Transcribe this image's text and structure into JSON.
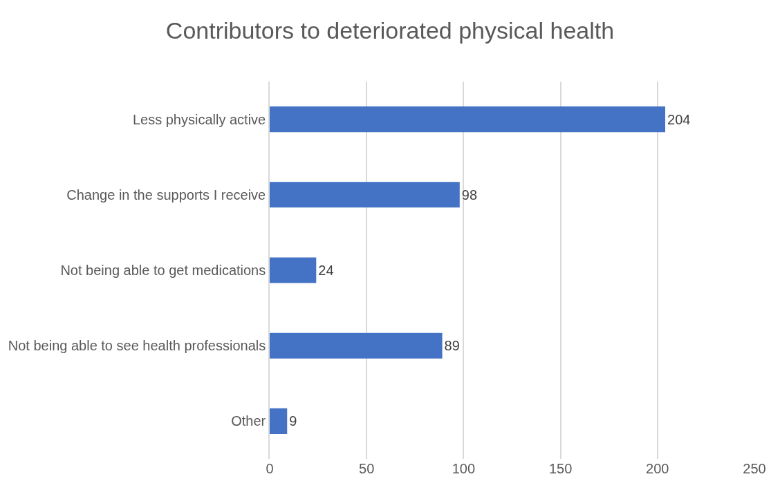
{
  "chart_data": {
    "type": "bar",
    "orientation": "horizontal",
    "title": "Contributors to deteriorated physical health",
    "categories": [
      "Less physically active",
      "Change in the supports I receive",
      "Not being able to get medications",
      "Not being able to see health professionals",
      "Other"
    ],
    "values": [
      204,
      98,
      24,
      89,
      9
    ],
    "color": "#4472c4",
    "xlim": [
      0,
      250
    ],
    "xticks": [
      0,
      50,
      100,
      150,
      200,
      250
    ],
    "grid": "x",
    "data_labels": true,
    "legend": false
  }
}
